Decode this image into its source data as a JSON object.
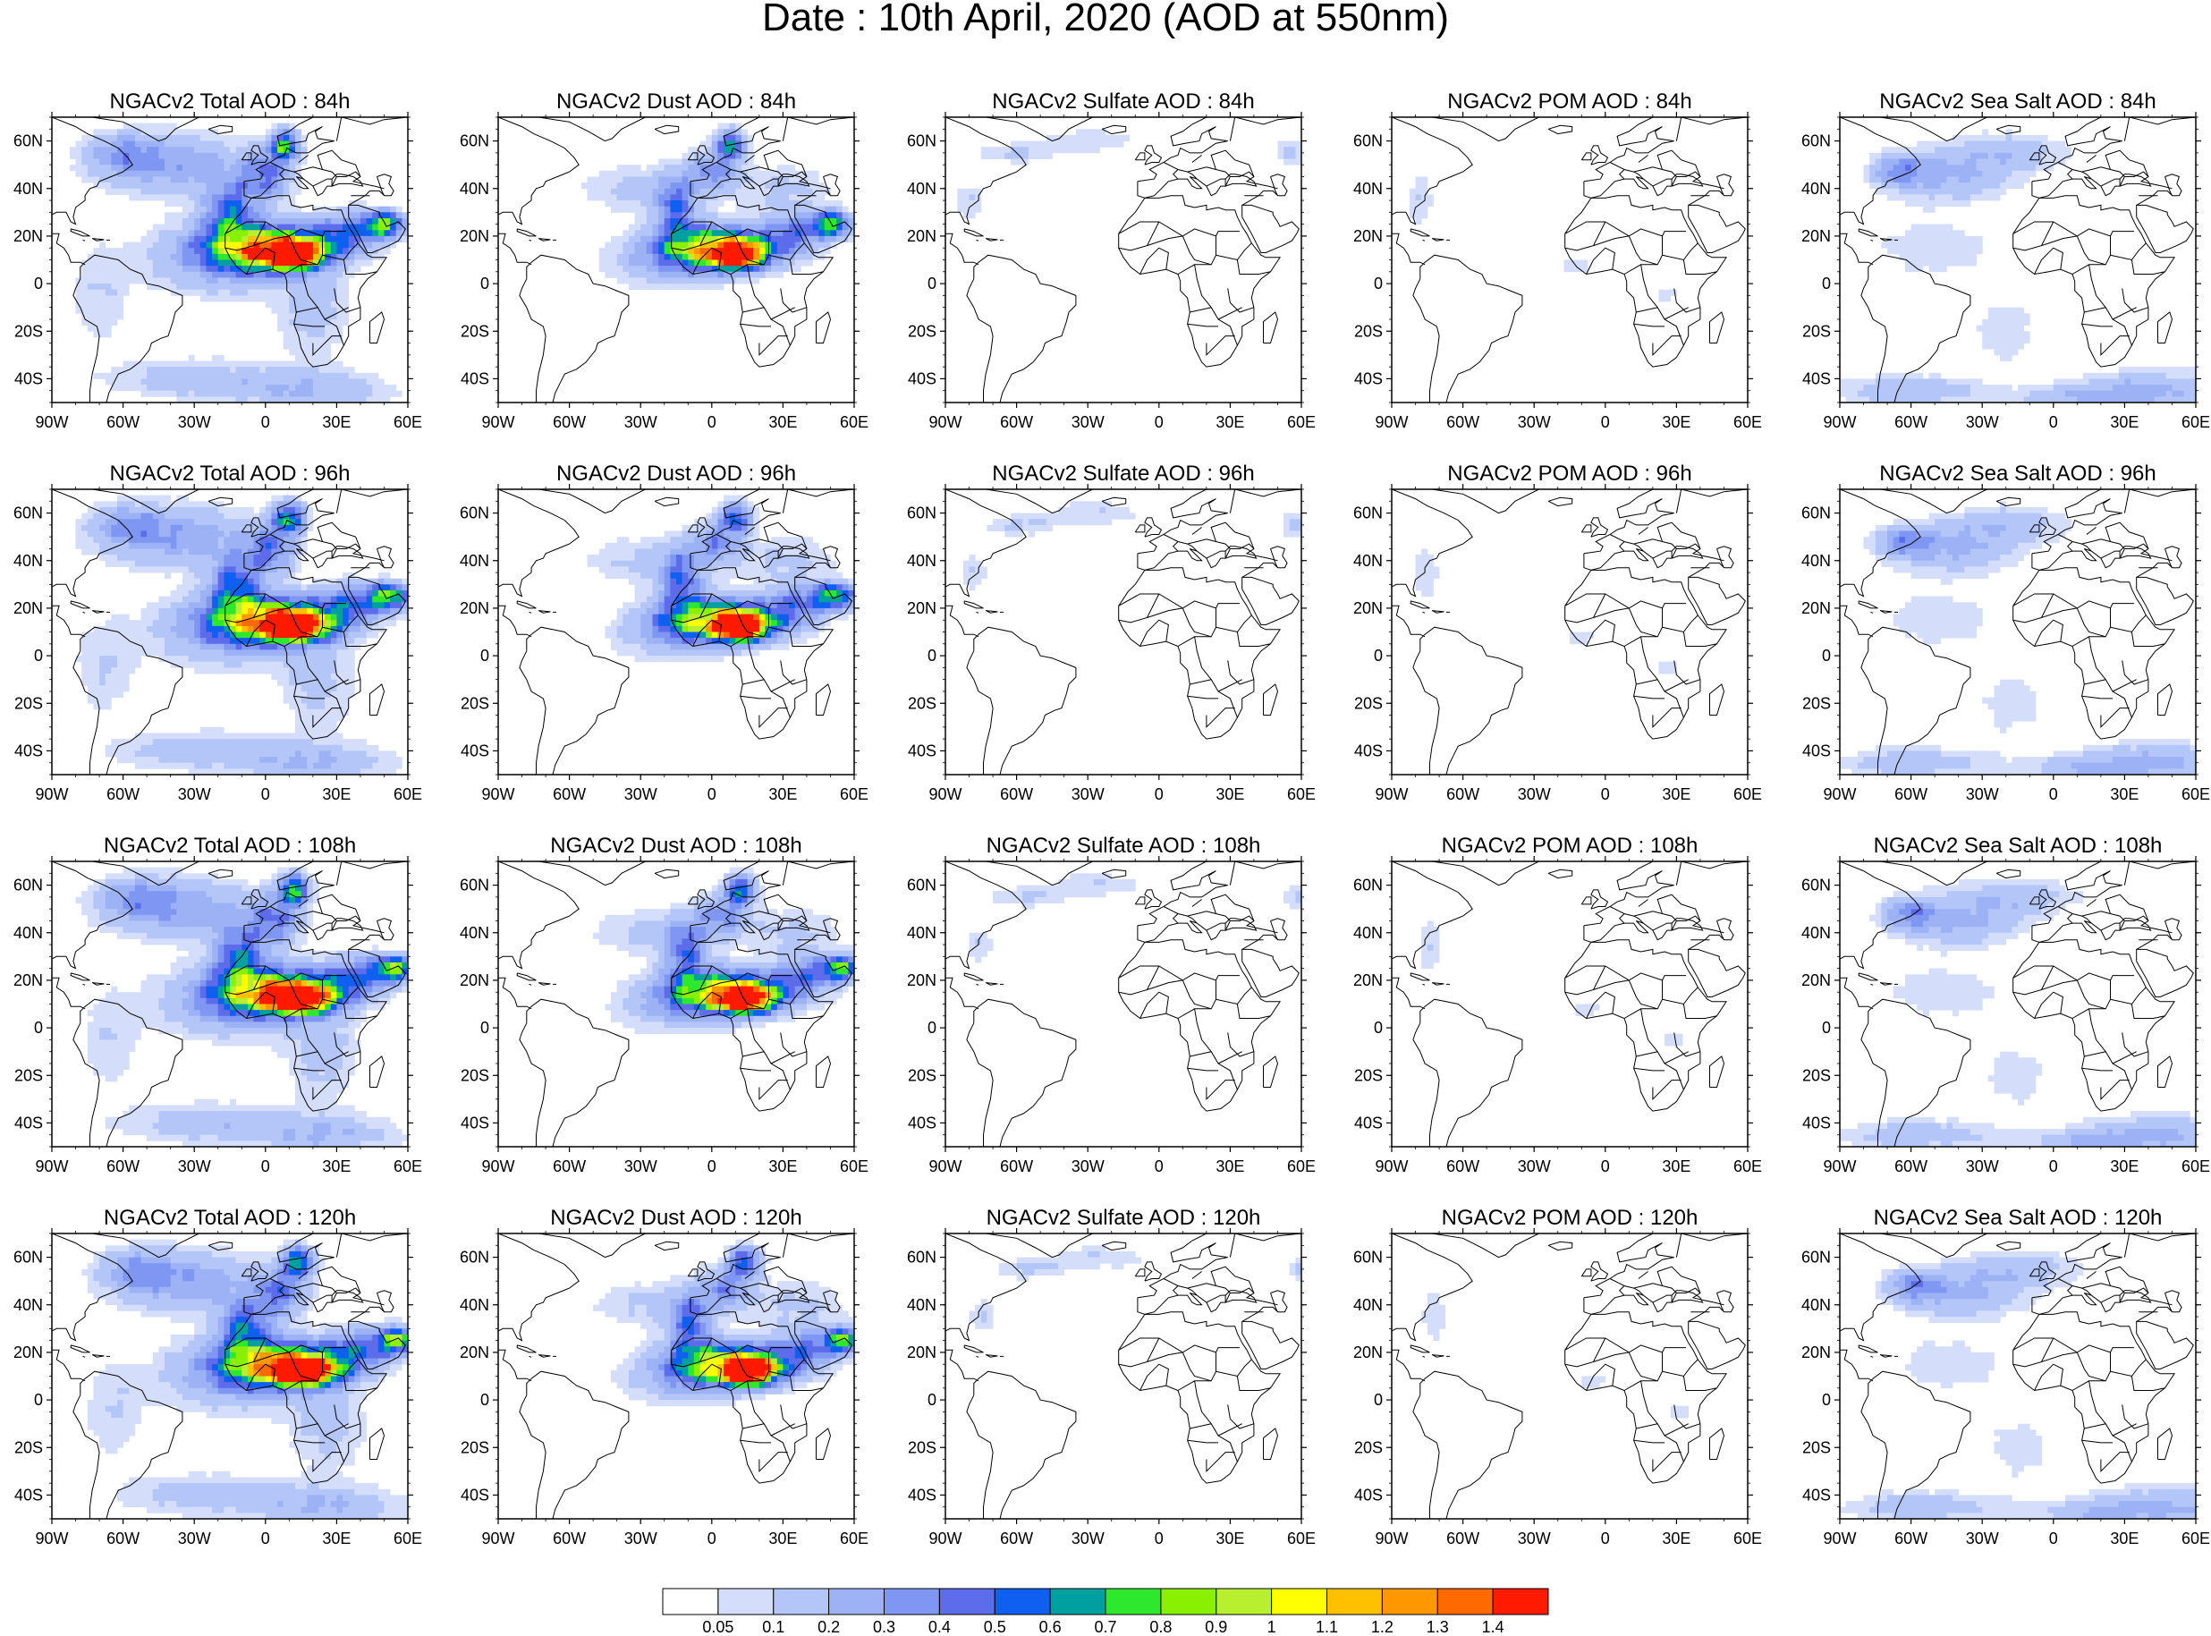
{
  "figure": {
    "title": "Date : 10th April, 2020 (AOD at 550nm)"
  },
  "axes": {
    "lat_ticks": [
      "60N",
      "40N",
      "20N",
      "0",
      "20S",
      "40S"
    ],
    "lat_values": [
      60,
      40,
      20,
      0,
      -20,
      -40
    ],
    "lon_ticks": [
      "90W",
      "60W",
      "30W",
      "0",
      "30E",
      "60E"
    ],
    "lon_values": [
      -90,
      -60,
      -30,
      0,
      30,
      60
    ],
    "lon_range": [
      -90,
      60
    ],
    "lat_range": [
      -50,
      70
    ]
  },
  "panels": [
    [
      {
        "title": "NGACv2 Total AOD : 84h",
        "species": "total"
      },
      {
        "title": "NGACv2 Dust AOD : 84h",
        "species": "dust"
      },
      {
        "title": "NGACv2 Sulfate AOD : 84h",
        "species": "sulfate"
      },
      {
        "title": "NGACv2 POM AOD : 84h",
        "species": "pom"
      },
      {
        "title": "NGACv2 Sea Salt AOD : 84h",
        "species": "seasalt"
      }
    ],
    [
      {
        "title": "NGACv2 Total AOD : 96h",
        "species": "total"
      },
      {
        "title": "NGACv2 Dust AOD : 96h",
        "species": "dust"
      },
      {
        "title": "NGACv2 Sulfate AOD : 96h",
        "species": "sulfate"
      },
      {
        "title": "NGACv2 POM AOD : 96h",
        "species": "pom"
      },
      {
        "title": "NGACv2 Sea Salt AOD : 96h",
        "species": "seasalt"
      }
    ],
    [
      {
        "title": "NGACv2 Total AOD : 108h",
        "species": "total"
      },
      {
        "title": "NGACv2 Dust AOD : 108h",
        "species": "dust"
      },
      {
        "title": "NGACv2 Sulfate AOD : 108h",
        "species": "sulfate"
      },
      {
        "title": "NGACv2 POM AOD : 108h",
        "species": "pom"
      },
      {
        "title": "NGACv2 Sea Salt AOD : 108h",
        "species": "seasalt"
      }
    ],
    [
      {
        "title": "NGACv2 Total AOD : 120h",
        "species": "total"
      },
      {
        "title": "NGACv2 Dust AOD : 120h",
        "species": "dust"
      },
      {
        "title": "NGACv2 Sulfate AOD : 120h",
        "species": "sulfate"
      },
      {
        "title": "NGACv2 POM AOD : 120h",
        "species": "pom"
      },
      {
        "title": "NGACv2 Sea Salt  AOD : 120h",
        "species": "seasalt"
      }
    ]
  ],
  "colorbar": {
    "levels": [
      "0.05",
      "0.1",
      "0.2",
      "0.3",
      "0.4",
      "0.5",
      "0.6",
      "0.7",
      "0.8",
      "0.9",
      "1",
      "1.1",
      "1.2",
      "1.3",
      "1.4"
    ],
    "colors": [
      "#ffffff",
      "#d4defa",
      "#b4c6f7",
      "#9cb2f5",
      "#7f97f2",
      "#5d6cea",
      "#0f5ff0",
      "#00a0a0",
      "#2ee82e",
      "#88f000",
      "#b8f030",
      "#ffff00",
      "#ffc000",
      "#ff9800",
      "#ff6a00",
      "#ff1a00"
    ]
  }
}
